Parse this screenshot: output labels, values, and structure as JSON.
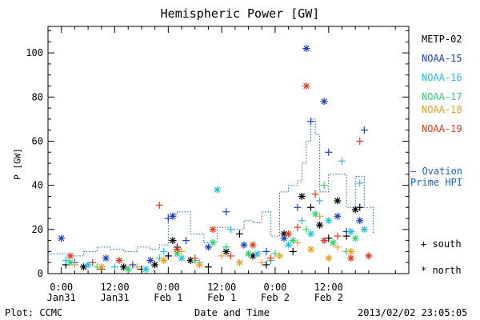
{
  "chart_data": {
    "type": "scatter",
    "title": "Hemispheric Power [GW]",
    "ylabel": "P [GW]",
    "xlabel": "Date and Time",
    "ylim": [
      0,
      112
    ],
    "xlim_hours": [
      -3,
      78
    ],
    "y_ticks": [
      0,
      20,
      40,
      60,
      80,
      100
    ],
    "x_ticks": [
      {
        "t": 0,
        "time": "0:00",
        "date": "Jan31"
      },
      {
        "t": 12,
        "time": "12:00",
        "date": "Jan31"
      },
      {
        "t": 24,
        "time": "0:00",
        "date": "Feb 1"
      },
      {
        "t": 36,
        "time": "12:00",
        "date": "Feb 1"
      },
      {
        "t": 48,
        "time": "0:00",
        "date": "Feb 2"
      },
      {
        "t": 60,
        "time": "12:00",
        "date": "Feb 2"
      }
    ],
    "series": [
      {
        "name": "METP-02",
        "color": "#000000",
        "points": [
          [
            1,
            4,
            "s"
          ],
          [
            5,
            3,
            "n"
          ],
          [
            9,
            2,
            "s"
          ],
          [
            14,
            3,
            "n"
          ],
          [
            18,
            2,
            "s"
          ],
          [
            21,
            4,
            "n"
          ],
          [
            24,
            8,
            "s"
          ],
          [
            25,
            15,
            "n"
          ],
          [
            26,
            12,
            "s"
          ],
          [
            29,
            6,
            "n"
          ],
          [
            33,
            3,
            "s"
          ],
          [
            37,
            10,
            "n"
          ],
          [
            40,
            18,
            "s"
          ],
          [
            43,
            8,
            "n"
          ],
          [
            46,
            4,
            "s"
          ],
          [
            50,
            18,
            "n"
          ],
          [
            52,
            10,
            "s"
          ],
          [
            54,
            35,
            "n"
          ],
          [
            56,
            30,
            "s"
          ],
          [
            58,
            22,
            "n"
          ],
          [
            60,
            16,
            "s"
          ],
          [
            62,
            33,
            "n"
          ],
          [
            64,
            17,
            "s"
          ],
          [
            66,
            29,
            "n"
          ],
          [
            67,
            30,
            "s"
          ]
        ]
      },
      {
        "name": "NOAA-15",
        "color": "#1a3fbf",
        "points": [
          [
            0,
            16,
            "n"
          ],
          [
            3,
            5,
            "s"
          ],
          [
            10,
            7,
            "n"
          ],
          [
            16,
            4,
            "s"
          ],
          [
            20,
            6,
            "n"
          ],
          [
            24,
            25,
            "s"
          ],
          [
            25,
            26,
            "n"
          ],
          [
            28,
            15,
            "s"
          ],
          [
            33,
            12,
            "n"
          ],
          [
            37,
            28,
            "s"
          ],
          [
            41,
            13,
            "n"
          ],
          [
            46,
            10,
            "s"
          ],
          [
            50,
            16,
            "n"
          ],
          [
            53,
            30,
            "s"
          ],
          [
            55,
            102,
            "n"
          ],
          [
            56,
            69,
            "s"
          ],
          [
            59,
            78,
            "n"
          ],
          [
            60,
            55,
            "s"
          ],
          [
            62,
            26,
            "n"
          ],
          [
            64,
            19,
            "s"
          ],
          [
            67,
            24,
            "n"
          ],
          [
            68,
            65,
            "s"
          ]
        ]
      },
      {
        "name": "NOAA-16",
        "color": "#22c0e0",
        "points": [
          [
            1,
            6,
            "s"
          ],
          [
            6,
            4,
            "n"
          ],
          [
            12,
            3,
            "s"
          ],
          [
            19,
            2,
            "n"
          ],
          [
            23,
            10,
            "s"
          ],
          [
            27,
            7,
            "n"
          ],
          [
            31,
            5,
            "s"
          ],
          [
            35,
            38,
            "n"
          ],
          [
            38,
            20,
            "s"
          ],
          [
            44,
            9,
            "n"
          ],
          [
            47,
            6,
            "s"
          ],
          [
            51,
            13,
            "n"
          ],
          [
            54,
            24,
            "s"
          ],
          [
            56,
            18,
            "n"
          ],
          [
            58,
            33,
            "s"
          ],
          [
            60,
            24,
            "n"
          ],
          [
            63,
            51,
            "s"
          ],
          [
            65,
            19,
            "n"
          ],
          [
            67,
            41,
            "s"
          ],
          [
            68,
            20,
            "n"
          ]
        ]
      },
      {
        "name": "NOAA-17",
        "color": "#30d070",
        "points": [
          [
            2,
            5,
            "n"
          ],
          [
            8,
            3,
            "s"
          ],
          [
            15,
            2,
            "n"
          ],
          [
            22,
            7,
            "s"
          ],
          [
            26,
            9,
            "n"
          ],
          [
            30,
            6,
            "s"
          ],
          [
            34,
            14,
            "n"
          ],
          [
            37,
            12,
            "s"
          ],
          [
            42,
            9,
            "n"
          ],
          [
            48,
            9,
            "s"
          ],
          [
            52,
            15,
            "n"
          ],
          [
            55,
            20,
            "s"
          ],
          [
            57,
            27,
            "n"
          ],
          [
            59,
            40,
            "s"
          ],
          [
            61,
            14,
            "n"
          ],
          [
            64,
            10,
            "s"
          ],
          [
            66,
            16,
            "n"
          ]
        ]
      },
      {
        "name": "NOAA-18",
        "color": "#f0a020",
        "points": [
          [
            3,
            4,
            "s"
          ],
          [
            9,
            3,
            "n"
          ],
          [
            17,
            3,
            "s"
          ],
          [
            23,
            6,
            "n"
          ],
          [
            27,
            10,
            "s"
          ],
          [
            31,
            4,
            "n"
          ],
          [
            36,
            8,
            "s"
          ],
          [
            40,
            5,
            "n"
          ],
          [
            45,
            5,
            "s"
          ],
          [
            49,
            8,
            "n"
          ],
          [
            53,
            14,
            "s"
          ],
          [
            56,
            11,
            "n"
          ],
          [
            58,
            26,
            "s"
          ],
          [
            60,
            7,
            "n"
          ],
          [
            62,
            12,
            "s"
          ],
          [
            65,
            10,
            "n"
          ]
        ]
      },
      {
        "name": "NOAA-19",
        "color": "#e03a1a",
        "points": [
          [
            2,
            8,
            "n"
          ],
          [
            7,
            5,
            "s"
          ],
          [
            13,
            6,
            "n"
          ],
          [
            22,
            31,
            "s"
          ],
          [
            26,
            11,
            "n"
          ],
          [
            30,
            7,
            "s"
          ],
          [
            34,
            20,
            "n"
          ],
          [
            38,
            8,
            "s"
          ],
          [
            43,
            13,
            "n"
          ],
          [
            47,
            7,
            "s"
          ],
          [
            51,
            18,
            "n"
          ],
          [
            53,
            21,
            "s"
          ],
          [
            55,
            85,
            "n"
          ],
          [
            57,
            36,
            "s"
          ],
          [
            59,
            15,
            "n"
          ],
          [
            62,
            17,
            "s"
          ],
          [
            65,
            7,
            "n"
          ],
          [
            67,
            60,
            "s"
          ],
          [
            69,
            8,
            "n"
          ]
        ]
      },
      {
        "name": "Ovation Prime HPI",
        "color": "#1a5fc8",
        "style": "step-dotted",
        "points": [
          [
            -3,
            9
          ],
          [
            0,
            9
          ],
          [
            2,
            8
          ],
          [
            5,
            10
          ],
          [
            8,
            12
          ],
          [
            11,
            11
          ],
          [
            14,
            10
          ],
          [
            17,
            12
          ],
          [
            20,
            11
          ],
          [
            22,
            13
          ],
          [
            24,
            27
          ],
          [
            26,
            28
          ],
          [
            29,
            18
          ],
          [
            32,
            14
          ],
          [
            35,
            21
          ],
          [
            38,
            20
          ],
          [
            41,
            24
          ],
          [
            43,
            23
          ],
          [
            45,
            28
          ],
          [
            47,
            17
          ],
          [
            49,
            37
          ],
          [
            51,
            40
          ],
          [
            53,
            42
          ],
          [
            54,
            50
          ],
          [
            55,
            60
          ],
          [
            56,
            70
          ],
          [
            57,
            63
          ],
          [
            58,
            37
          ],
          [
            60,
            45
          ],
          [
            62,
            45
          ],
          [
            64,
            30
          ],
          [
            66,
            44
          ],
          [
            68,
            30
          ],
          [
            70,
            18
          ]
        ]
      }
    ],
    "legend": {
      "placement": "right",
      "ovation_line1": "— Ovation",
      "ovation_line2": "Prime HPI",
      "south_symbol": "+ south",
      "north_symbol": "* north"
    },
    "footer": {
      "plot_credit": "Plot: CCMC",
      "timestamp": "2013/02/02 23:05:05"
    }
  }
}
